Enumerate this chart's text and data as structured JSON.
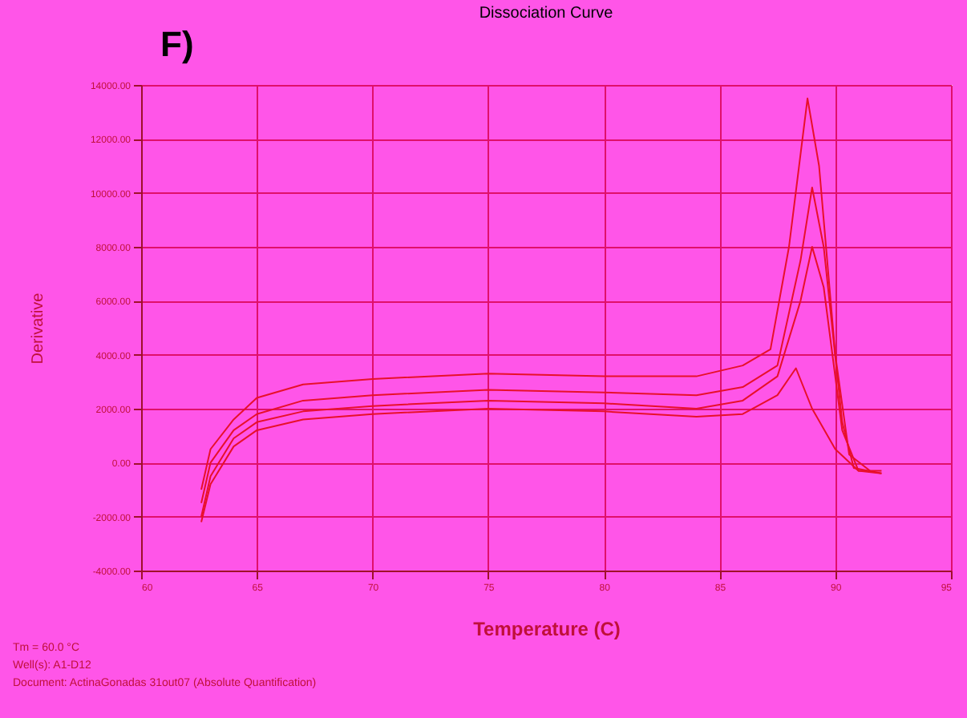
{
  "chart_data": {
    "type": "line",
    "title": "Dissociation Curve",
    "xlabel": "Temperature (C)",
    "ylabel": "Derivative",
    "annotations": [
      "F)",
      "Tm = 60.0 °C",
      "Well(s): A1-D12",
      "Document: ActinaGonadas 31out07 (Absolute Quantification)"
    ],
    "xlim": [
      60,
      95
    ],
    "xticks": [
      60,
      65,
      70,
      75,
      80,
      85,
      90,
      95
    ],
    "ylim": [
      -4000,
      14000
    ],
    "yticks": [
      {
        "value": -4000,
        "label": "-4000.00"
      },
      {
        "value": -2000,
        "label": "-2000.00"
      },
      {
        "value": 0,
        "label": "0.00"
      },
      {
        "value": 2000,
        "label": "2000.00"
      },
      {
        "value": 4000,
        "label": "4000.00"
      },
      {
        "value": 6000,
        "label": "6000.00"
      },
      {
        "value": 8000,
        "label": "8000.00"
      },
      {
        "value": 10000,
        "label": "10000.00"
      },
      {
        "value": 12000,
        "label": "12000.00"
      },
      {
        "value": 14000,
        "label": "14000.00"
      }
    ],
    "grid": true,
    "marker": "none",
    "line_style": "solid",
    "series": [
      {
        "color": "#e8102a",
        "x": [
          62.6,
          63,
          64,
          65,
          67,
          70,
          75,
          80,
          84,
          86,
          87.2,
          88,
          88.8,
          89.3,
          90,
          90.6,
          91.5
        ],
        "values": [
          -1000,
          500,
          1600,
          2400,
          2900,
          3100,
          3300,
          3200,
          3200,
          3600,
          4200,
          8000,
          13500,
          11000,
          4000,
          300,
          -300
        ]
      },
      {
        "color": "#e8102a",
        "x": [
          62.6,
          63,
          64,
          65,
          67,
          70,
          75,
          80,
          84,
          86,
          87.5,
          88.5,
          89,
          89.5,
          90.3,
          90.8,
          92
        ],
        "values": [
          -1500,
          0,
          1200,
          1800,
          2300,
          2500,
          2700,
          2600,
          2500,
          2800,
          3600,
          7500,
          10200,
          8000,
          1500,
          -200,
          -400
        ]
      },
      {
        "color": "#e8102a",
        "x": [
          62.6,
          63,
          64,
          65,
          67,
          70,
          75,
          80,
          84,
          86,
          87.5,
          88.5,
          89,
          89.5,
          90.3,
          91,
          92
        ],
        "values": [
          -2000,
          -500,
          900,
          1500,
          1900,
          2100,
          2300,
          2200,
          2000,
          2300,
          3200,
          6000,
          8000,
          6500,
          1200,
          -300,
          -300
        ]
      },
      {
        "color": "#e8102a",
        "x": [
          62.6,
          63,
          64,
          65,
          67,
          70,
          75,
          80,
          84,
          86,
          87.5,
          88.3,
          89,
          90,
          91,
          92
        ],
        "values": [
          -2200,
          -800,
          600,
          1200,
          1600,
          1800,
          2000,
          1900,
          1700,
          1800,
          2500,
          3500,
          2000,
          500,
          -300,
          -400
        ]
      }
    ]
  }
}
